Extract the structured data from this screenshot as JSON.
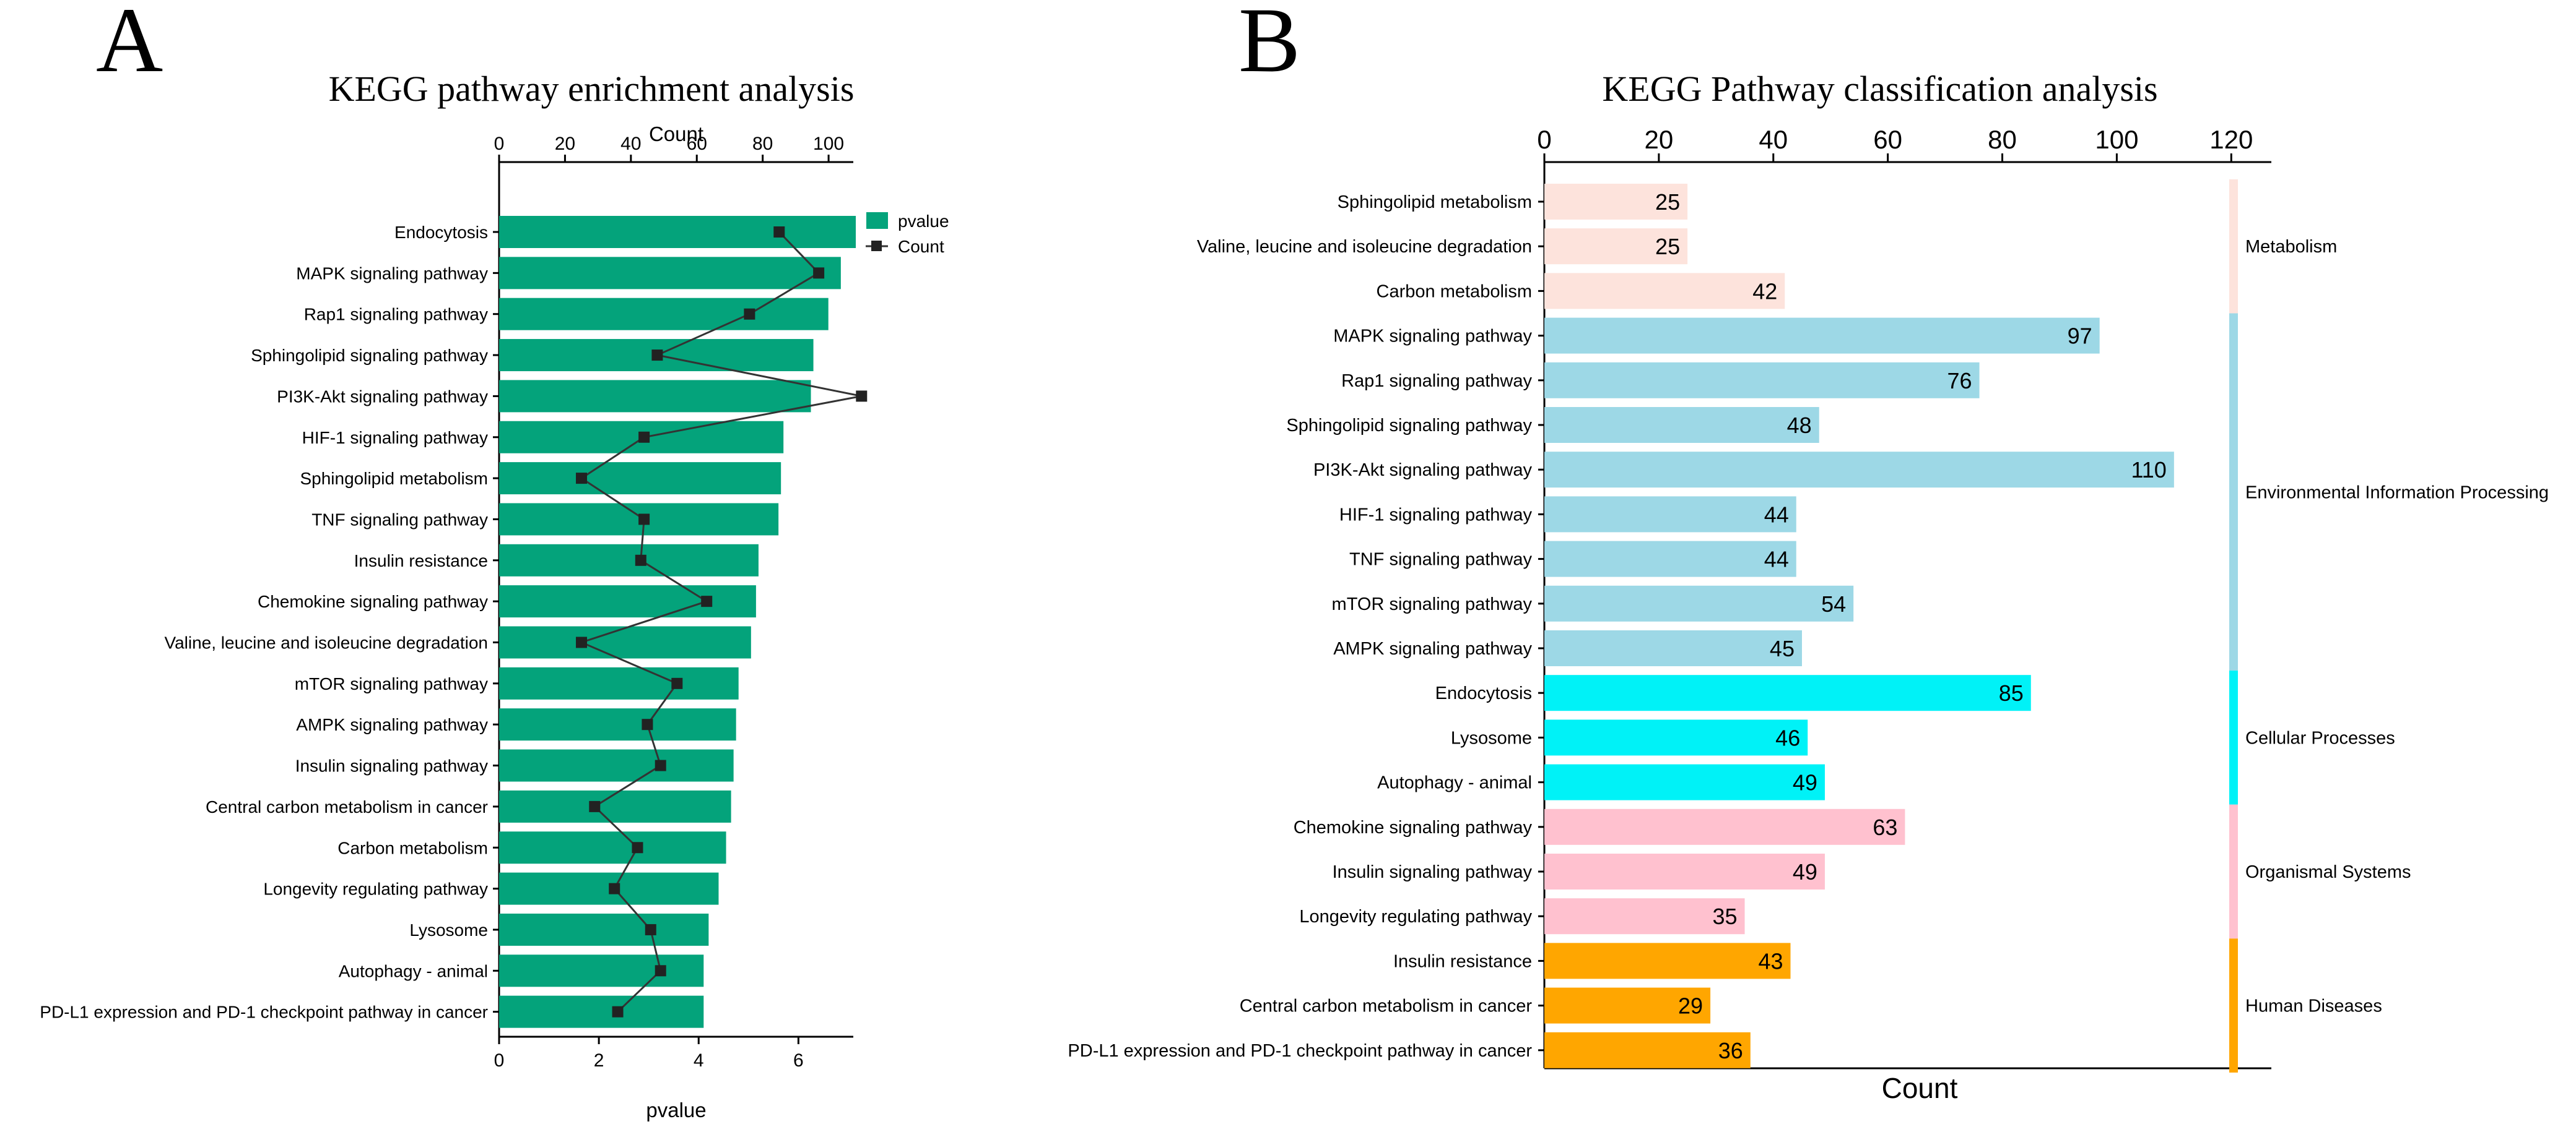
{
  "chart_data": [
    {
      "panel_label": "A",
      "type": "bar",
      "orientation": "horizontal",
      "title": "KEGG pathway enrichment analysis",
      "xlabel": "pvalue",
      "x2label": "Count",
      "xlim": [
        0,
        7.1
      ],
      "x2lim": [
        0,
        107.5
      ],
      "xticks": [
        0,
        2,
        4,
        6
      ],
      "x2ticks": [
        0,
        20,
        40,
        60,
        80,
        100
      ],
      "legend": {
        "position": "top-right",
        "bar_label": "pvalue",
        "line_label": "Count"
      },
      "colors": {
        "bar": "#04a37b",
        "line": "#333333",
        "marker": "#222222"
      },
      "categories": [
        "Endocytosis",
        "MAPK signaling pathway",
        "Rap1 signaling pathway",
        "Sphingolipid signaling pathway",
        "PI3K-Akt signaling pathway",
        "HIF-1 signaling pathway",
        "Sphingolipid metabolism",
        "TNF signaling pathway",
        "Insulin resistance",
        "Chemokine signaling pathway",
        "Valine, leucine and isoleucine degradation",
        "mTOR signaling pathway",
        "AMPK signaling pathway",
        "Insulin signaling pathway",
        "Central carbon metabolism in cancer",
        "Carbon metabolism",
        "Longevity regulating pathway",
        "Lysosome",
        "Autophagy - animal",
        "PD-L1 expression and PD-1 checkpoint pathway in cancer"
      ],
      "series": [
        {
          "name": "pvalue",
          "kind": "bar",
          "values": [
            7.15,
            6.85,
            6.6,
            6.3,
            6.25,
            5.7,
            5.65,
            5.6,
            5.2,
            5.15,
            5.05,
            4.8,
            4.75,
            4.7,
            4.65,
            4.55,
            4.4,
            4.2,
            4.1,
            4.1
          ]
        },
        {
          "name": "Count",
          "kind": "line",
          "values": [
            85,
            97,
            76,
            48,
            110,
            44,
            25,
            44,
            43,
            63,
            25,
            54,
            45,
            49,
            29,
            42,
            35,
            46,
            49,
            36
          ]
        }
      ]
    },
    {
      "panel_label": "B",
      "type": "bar",
      "orientation": "horizontal",
      "title": "KEGG Pathway classification analysis",
      "xlabel": "Count",
      "xlim": [
        0,
        127
      ],
      "xticks": [
        0,
        20,
        40,
        60,
        80,
        100,
        120
      ],
      "data_labels": true,
      "categories": [
        "Sphingolipid metabolism",
        "Valine, leucine and isoleucine degradation",
        "Carbon metabolism",
        "MAPK signaling pathway",
        "Rap1 signaling pathway",
        "Sphingolipid signaling pathway",
        "PI3K-Akt signaling pathway",
        "HIF-1 signaling pathway",
        "TNF signaling pathway",
        "mTOR signaling pathway",
        "AMPK signaling pathway",
        "Endocytosis",
        "Lysosome",
        "Autophagy - animal",
        "Chemokine signaling pathway",
        "Insulin signaling pathway",
        "Longevity regulating pathway",
        "Insulin resistance",
        "Central carbon metabolism in cancer",
        "PD-L1 expression and PD-1 checkpoint pathway in cancer"
      ],
      "values": [
        25,
        25,
        42,
        97,
        76,
        48,
        110,
        44,
        44,
        54,
        45,
        85,
        46,
        49,
        63,
        49,
        35,
        43,
        29,
        36
      ],
      "groups": [
        {
          "name": "Metabolism",
          "start": 0,
          "end": 2,
          "bar_color": "#fde3dc",
          "strip_color": "#fde3dc"
        },
        {
          "name": "Environmental Information Processing",
          "start": 3,
          "end": 10,
          "bar_color": "#9dd8e6",
          "strip_color": "#9dd8e6"
        },
        {
          "name": "Cellular Processes",
          "start": 11,
          "end": 13,
          "bar_color": "#00f2f7",
          "strip_color": "#00f2f7"
        },
        {
          "name": "Organismal Systems",
          "start": 14,
          "end": 16,
          "bar_color": "#ffc1cf",
          "strip_color": "#ffc1cf"
        },
        {
          "name": "Human Diseases",
          "start": 17,
          "end": 19,
          "bar_color": "#ffa600",
          "strip_color": "#ffa600"
        }
      ]
    }
  ]
}
